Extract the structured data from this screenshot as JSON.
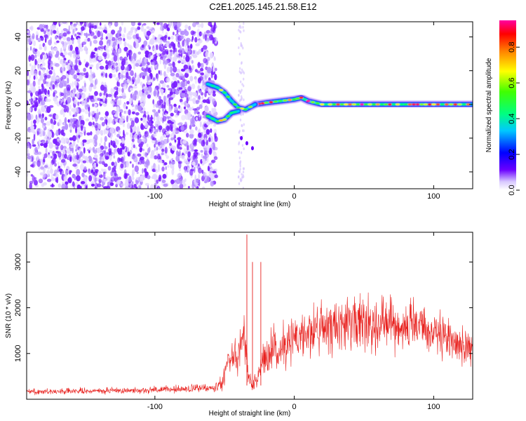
{
  "title": "C2E1.2025.145.21.58.E12",
  "chart_data": [
    {
      "type": "heatmap",
      "xlabel": "Height of straight line (km)",
      "ylabel": "Frequency (Hz)",
      "xlim": [
        -192,
        128
      ],
      "ylim": [
        -50,
        49
      ],
      "x_ticks": [
        -100,
        0,
        100
      ],
      "x_tick_labels": [
        "-100",
        "0",
        "100"
      ],
      "y_ticks": [
        -40,
        -20,
        0,
        20,
        40
      ],
      "y_tick_labels": [
        "-40",
        "-20",
        "0",
        "20",
        "40"
      ],
      "colorbar": {
        "label": "Normalized spectral amplitude",
        "range": [
          0,
          0.95
        ],
        "ticks": [
          0.0,
          0.2,
          0.4,
          0.6,
          0.8
        ],
        "tick_labels": [
          "0.0",
          "0.2",
          "0.4",
          "0.6",
          "0.8"
        ]
      },
      "noise_region_x": [
        -192,
        -58
      ],
      "signal_ridge": {
        "points": [
          [
            -62,
            12
          ],
          [
            -55,
            10
          ],
          [
            -50,
            7
          ],
          [
            -45,
            2
          ],
          [
            -40,
            -2
          ],
          [
            -35,
            -3
          ],
          [
            -28,
            0
          ],
          [
            -20,
            1
          ],
          [
            -10,
            2
          ],
          [
            0,
            3
          ],
          [
            5,
            4
          ],
          [
            10,
            2
          ],
          [
            20,
            0
          ],
          [
            40,
            0
          ],
          [
            60,
            0
          ],
          [
            80,
            0
          ],
          [
            100,
            0
          ],
          [
            128,
            0
          ]
        ],
        "lower_branch": [
          [
            -62,
            -7
          ],
          [
            -55,
            -10
          ],
          [
            -50,
            -9
          ],
          [
            -45,
            -5
          ],
          [
            -40,
            -4
          ]
        ],
        "tail": [
          [
            -38,
            -20
          ],
          [
            -34,
            -23
          ],
          [
            -30,
            -26
          ]
        ]
      }
    },
    {
      "type": "line",
      "xlabel": "Height of straight line (km)",
      "ylabel": "SNR (10 * v/v)",
      "xlim": [
        -192,
        128
      ],
      "ylim": [
        0,
        3650
      ],
      "x_ticks": [
        -100,
        0,
        100
      ],
      "x_tick_labels": [
        "-100",
        "0",
        "100"
      ],
      "y_ticks": [
        1000,
        2000,
        3000
      ],
      "y_tick_labels": [
        "1000",
        "2000",
        "3000"
      ],
      "line_color": "#e8211e",
      "envelope": {
        "x": [
          -192,
          -170,
          -140,
          -110,
          -80,
          -60,
          -52,
          -48,
          -44,
          -40,
          -36,
          -33,
          -30,
          -26,
          -22,
          -18,
          -12,
          -5,
          0,
          10,
          20,
          30,
          40,
          50,
          60,
          70,
          80,
          90,
          100,
          110,
          118,
          128
        ],
        "mean": [
          170,
          170,
          180,
          200,
          220,
          250,
          350,
          800,
          1000,
          1050,
          1400,
          600,
          250,
          500,
          900,
          1000,
          1050,
          1200,
          1300,
          1500,
          1550,
          1600,
          1650,
          1700,
          1700,
          1650,
          1600,
          1550,
          1400,
          1300,
          1200,
          1100
        ],
        "amp": [
          100,
          100,
          110,
          120,
          130,
          150,
          250,
          500,
          600,
          700,
          900,
          400,
          200,
          450,
          650,
          750,
          800,
          800,
          850,
          900,
          900,
          900,
          950,
          1000,
          1000,
          950,
          900,
          850,
          800,
          750,
          700,
          650
        ]
      },
      "spikes": [
        [
          -34,
          3600
        ],
        [
          -30,
          3000
        ],
        [
          -24,
          3000
        ]
      ]
    }
  ]
}
